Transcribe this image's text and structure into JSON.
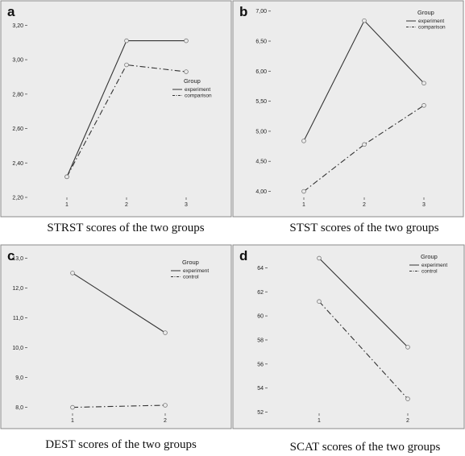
{
  "chart_data": [
    {
      "panel_letter": "a",
      "type": "line",
      "caption": "STRST scores of the two groups",
      "x": [
        "1",
        "2",
        "3"
      ],
      "ylim": [
        2.2,
        3.3
      ],
      "yticks": [
        "2,20",
        "2,40",
        "2,60",
        "2,80",
        "3,00",
        "3,20"
      ],
      "ytick_values": [
        2.2,
        2.4,
        2.6,
        2.8,
        3.0,
        3.2
      ],
      "legend": {
        "title": "Group",
        "placement": "center-right"
      },
      "series": [
        {
          "name": "experiment",
          "style": "solid",
          "values": [
            2.32,
            3.11,
            3.11
          ]
        },
        {
          "name": "comparison",
          "style": "dash-dot",
          "values": [
            2.32,
            2.97,
            2.93
          ]
        }
      ]
    },
    {
      "panel_letter": "b",
      "type": "line",
      "caption": "STST scores of the two groups",
      "x": [
        "1",
        "2",
        "3"
      ],
      "ylim": [
        3.9,
        7.05
      ],
      "yticks": [
        "4,00",
        "4,50",
        "5,00",
        "5,50",
        "6,00",
        "6,50",
        "7,00"
      ],
      "ytick_values": [
        4.0,
        4.5,
        5.0,
        5.5,
        6.0,
        6.5,
        7.0
      ],
      "legend": {
        "title": "Group",
        "placement": "top-right"
      },
      "series": [
        {
          "name": "experiment",
          "style": "solid",
          "values": [
            4.84,
            6.84,
            5.8
          ]
        },
        {
          "name": "comparison",
          "style": "dash-dot",
          "values": [
            4.0,
            4.78,
            5.43
          ]
        }
      ]
    },
    {
      "panel_letter": "c",
      "type": "line",
      "caption": "DEST scores of the two groups",
      "x": [
        "1",
        "2"
      ],
      "ylim": [
        7.8,
        13.2
      ],
      "yticks": [
        "8,0",
        "9,0",
        "10,0",
        "11,0",
        "12,0",
        "13,0"
      ],
      "ytick_values": [
        8,
        9,
        10,
        11,
        12,
        13
      ],
      "legend": {
        "title": "Group",
        "placement": "top-right"
      },
      "series": [
        {
          "name": "experiment",
          "style": "solid",
          "values": [
            12.5,
            10.5
          ]
        },
        {
          "name": "control",
          "style": "dash-dot",
          "values": [
            8.0,
            8.07
          ]
        }
      ]
    },
    {
      "panel_letter": "d",
      "type": "line",
      "caption": "SCAT scores of the two groups",
      "x": [
        "1",
        "2"
      ],
      "ylim": [
        51.9,
        65.3
      ],
      "yticks": [
        "52",
        "54",
        "56",
        "58",
        "60",
        "62",
        "64"
      ],
      "ytick_values": [
        52,
        54,
        56,
        58,
        60,
        62,
        64
      ],
      "legend": {
        "title": "Group",
        "placement": "top-right"
      },
      "series": [
        {
          "name": "experiment",
          "style": "solid",
          "values": [
            64.8,
            57.4
          ]
        },
        {
          "name": "control",
          "style": "dash-dot",
          "values": [
            61.2,
            53.1
          ]
        }
      ]
    }
  ]
}
